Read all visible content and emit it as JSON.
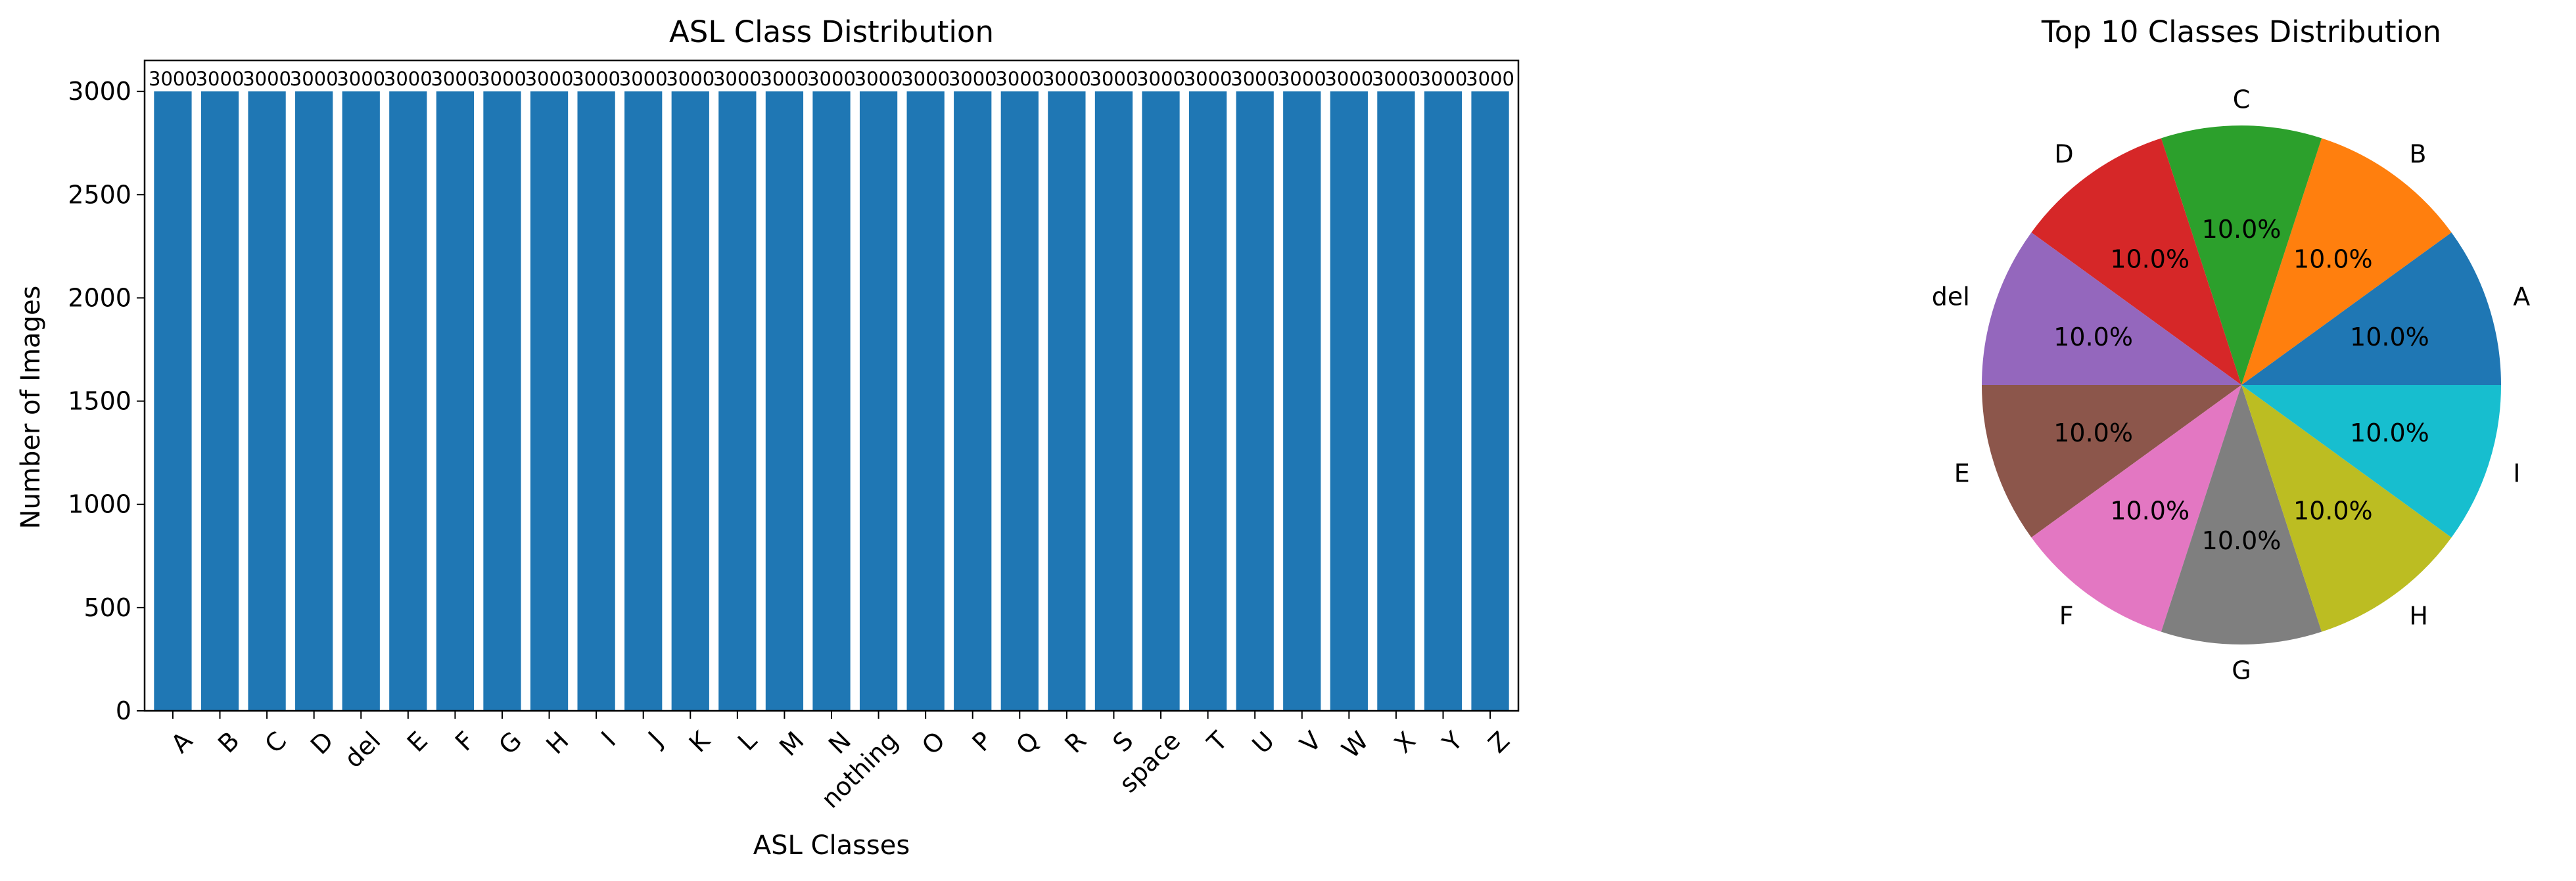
{
  "chart_data": [
    {
      "type": "bar",
      "title": "ASL Class Distribution",
      "xlabel": "ASL Classes",
      "ylabel": "Number of Images",
      "categories": [
        "A",
        "B",
        "C",
        "D",
        "del",
        "E",
        "F",
        "G",
        "H",
        "I",
        "J",
        "K",
        "L",
        "M",
        "N",
        "nothing",
        "O",
        "P",
        "Q",
        "R",
        "S",
        "space",
        "T",
        "U",
        "V",
        "W",
        "X",
        "Y",
        "Z"
      ],
      "values": [
        3000,
        3000,
        3000,
        3000,
        3000,
        3000,
        3000,
        3000,
        3000,
        3000,
        3000,
        3000,
        3000,
        3000,
        3000,
        3000,
        3000,
        3000,
        3000,
        3000,
        3000,
        3000,
        3000,
        3000,
        3000,
        3000,
        3000,
        3000,
        3000
      ],
      "value_labels": [
        "3000",
        "3000",
        "3000",
        "3000",
        "3000",
        "3000",
        "3000",
        "3000",
        "3000",
        "3000",
        "3000",
        "3000",
        "3000",
        "3000",
        "3000",
        "3000",
        "3000",
        "3000",
        "3000",
        "3000",
        "3000",
        "3000",
        "3000",
        "3000",
        "3000",
        "3000",
        "3000",
        "3000",
        "3000"
      ],
      "ylim": [
        0,
        3150
      ],
      "yticks": [
        0,
        500,
        1000,
        1500,
        2000,
        2500,
        3000
      ],
      "color": "#1f77b4",
      "grid": false
    },
    {
      "type": "pie",
      "title": "Top 10 Classes Distribution",
      "labels": [
        "A",
        "B",
        "C",
        "D",
        "del",
        "E",
        "F",
        "G",
        "H",
        "I"
      ],
      "values": [
        3000,
        3000,
        3000,
        3000,
        3000,
        3000,
        3000,
        3000,
        3000,
        3000
      ],
      "percent_labels": [
        "10.0%",
        "10.0%",
        "10.0%",
        "10.0%",
        "10.0%",
        "10.0%",
        "10.0%",
        "10.0%",
        "10.0%",
        "10.0%"
      ],
      "colors": [
        "#1f77b4",
        "#ff7f0e",
        "#2ca02c",
        "#d62728",
        "#9467bd",
        "#8c564b",
        "#e377c2",
        "#7f7f7f",
        "#bcbd22",
        "#17becf"
      ]
    }
  ]
}
